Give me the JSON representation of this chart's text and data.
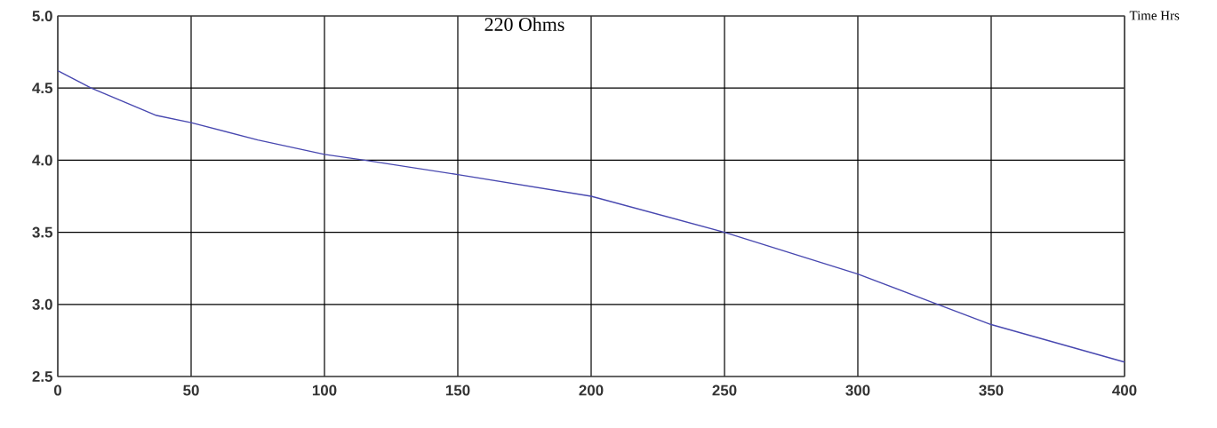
{
  "chart_data": {
    "type": "line",
    "title": "220 Ohms",
    "xlabel": "Time Hrs",
    "x": [
      0,
      12.5,
      37,
      50,
      75,
      100,
      115,
      150,
      200,
      250,
      300,
      330,
      350,
      400
    ],
    "series": [
      {
        "color": "#4848b0",
        "values": [
          4.62,
          4.5,
          4.31,
          4.26,
          4.14,
          4.04,
          4.0,
          3.9,
          3.75,
          3.5,
          3.21,
          3.0,
          2.86,
          2.6
        ]
      }
    ],
    "xlim": [
      0,
      400
    ],
    "ylim": [
      2.5,
      5.0
    ],
    "xticks": [
      0,
      50,
      100,
      150,
      200,
      250,
      300,
      350,
      400
    ],
    "yticks": [
      {
        "value": 2.5,
        "label": "2.5"
      },
      {
        "value": 3,
        "label": "3.0"
      },
      {
        "value": 3.5,
        "label": "3.5"
      },
      {
        "value": 4,
        "label": "4.0"
      },
      {
        "value": 4.5,
        "label": "4.5"
      },
      {
        "value": 5,
        "label": "5.0"
      }
    ],
    "grid": true,
    "marker": "none",
    "line_style": "solid"
  }
}
